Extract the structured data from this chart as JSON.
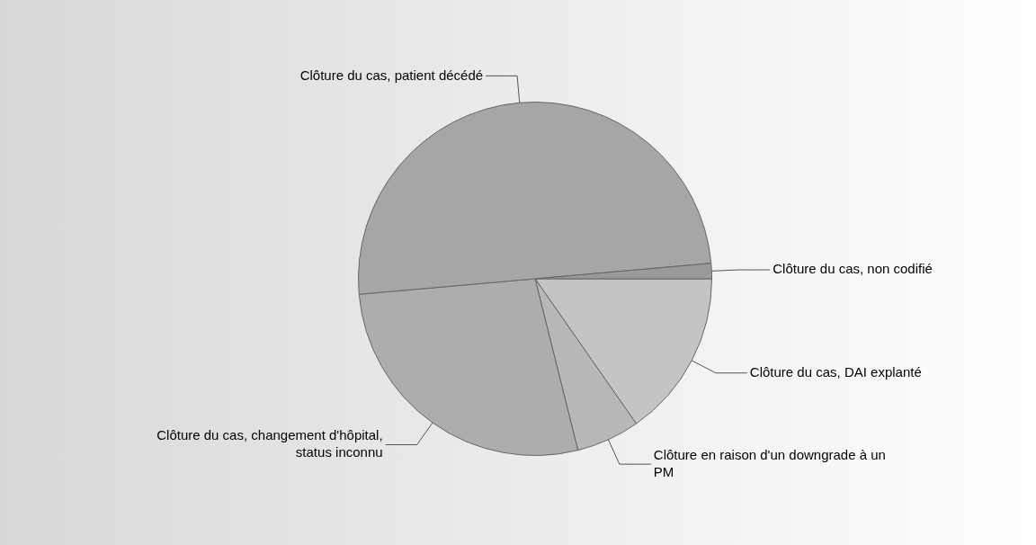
{
  "chart_data": {
    "type": "pie",
    "categories": [
      "Clôture du cas, DAI explanté",
      "Clôture en raison d'un downgrade à un PM",
      "Clôture du cas, changement d'hôpital, status inconnu",
      "Clôture du cas, patient décédé",
      "Clôture du cas, non codifié"
    ],
    "values": [
      15.3,
      5.8,
      27.5,
      50,
      1.4
    ],
    "colors": [
      "#c4c4c4",
      "#b8b8b8",
      "#adadad",
      "#a6a6a6",
      "#9a9a9a"
    ],
    "legend": false
  }
}
